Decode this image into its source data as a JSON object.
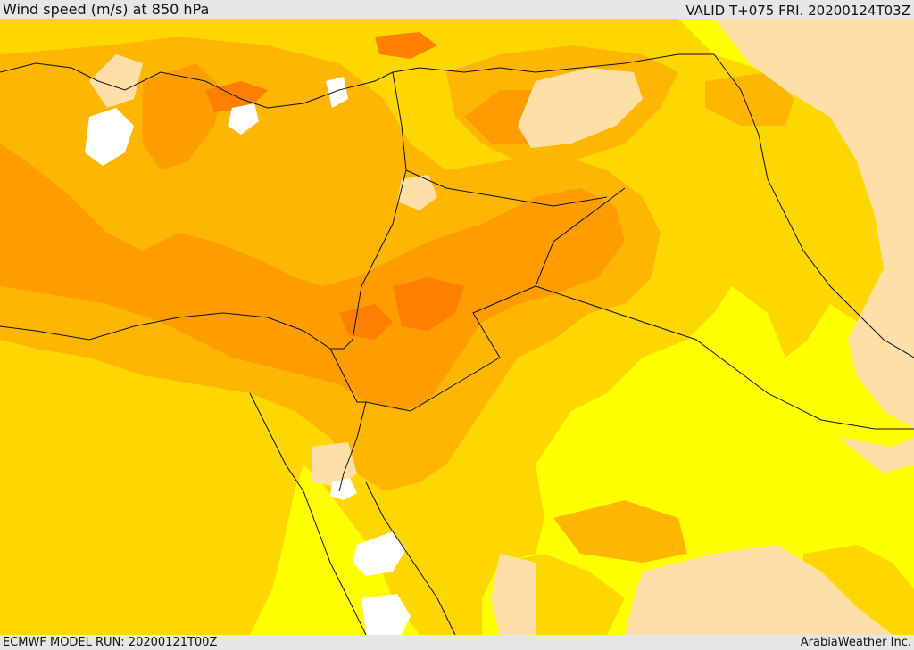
{
  "header": {
    "title": "Wind speed (m/s) at 850 hPa",
    "valid_time": "VALID T+075 FRI. 20200124T03Z"
  },
  "footer": {
    "model_run": "ECMWF MODEL RUN: 20200121T00Z",
    "credit": "ArabiaWeather Inc."
  },
  "palette": {
    "calm": "#ffffff",
    "light": "#ffdfa8",
    "moderate": "#ffff00",
    "fresh": "#ffd700",
    "strong": "#ffb600",
    "very_strong": "#ff9d00",
    "max": "#ff7f00",
    "border": "#111111"
  }
}
